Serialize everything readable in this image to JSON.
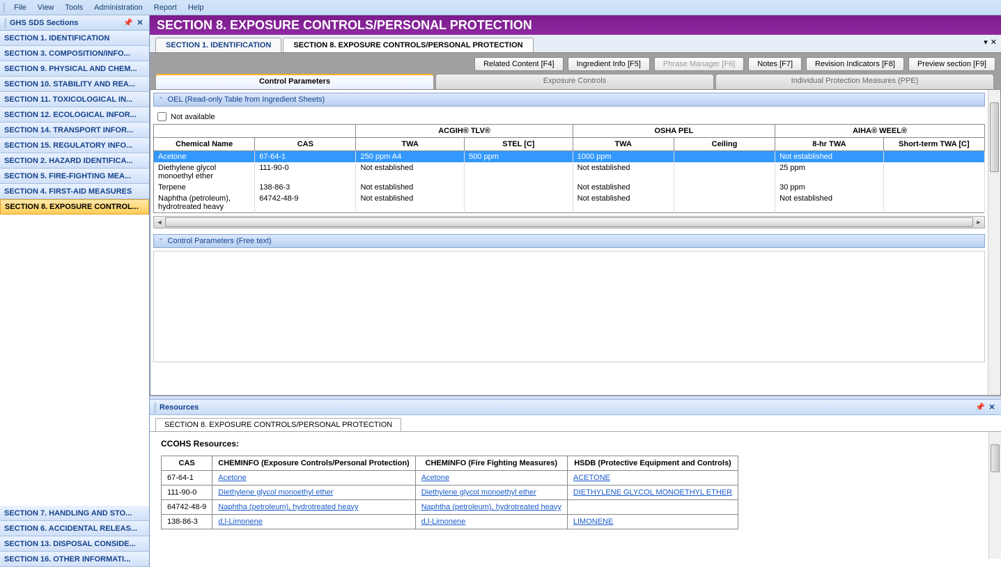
{
  "menu": {
    "items": [
      "File",
      "View",
      "Tools",
      "Administration",
      "Report",
      "Help"
    ]
  },
  "sidebar": {
    "title": "GHS SDS Sections",
    "top_items": [
      "SECTION 1. IDENTIFICATION",
      "SECTION  3. COMPOSITION/INFO...",
      "SECTION  9. PHYSICAL AND CHEM...",
      "SECTION 10. STABILITY AND REA...",
      "SECTION 11. TOXICOLOGICAL IN...",
      "SECTION 12. ECOLOGICAL INFOR...",
      "SECTION 14. TRANSPORT INFOR...",
      "SECTION 15. REGULATORY INFO...",
      "SECTION 2. HAZARD IDENTIFICA...",
      "SECTION 5. FIRE-FIGHTING MEA...",
      "SECTION 4. FIRST-AID MEASURES",
      "SECTION 8. EXPOSURE CONTROL..."
    ],
    "active_index": 11,
    "bottom_items": [
      "SECTION 7. HANDLING AND STO...",
      "SECTION 6. ACCIDENTAL RELEAS...",
      "SECTION 13. DISPOSAL CONSIDE...",
      "SECTION 16. OTHER INFORMATI..."
    ]
  },
  "main": {
    "title": "SECTION 8. EXPOSURE CONTROLS/PERSONAL PROTECTION",
    "doc_tabs": [
      {
        "label": "SECTION 1. IDENTIFICATION",
        "active": false
      },
      {
        "label": "SECTION 8. EXPOSURE CONTROLS/PERSONAL PROTECTION",
        "active": true
      }
    ],
    "toolbar": {
      "related": "Related Content [F4]",
      "ingredient": "Ingredient Info [F5]",
      "phrase": "Phrase Manager [F6]",
      "notes": "Notes [F7]",
      "revision": "Revision Indicators [F8]",
      "preview": "Preview section [F9]"
    },
    "inner_tabs": [
      {
        "label": "Control Parameters",
        "active": true
      },
      {
        "label": "Exposure Controls",
        "active": false
      },
      {
        "label": "Individual Protection Measures (PPE)",
        "active": false
      }
    ],
    "oel": {
      "header": "OEL (Read-only Table from Ingredient Sheets)",
      "not_available": "Not available",
      "group_headers": {
        "acgih": "ACGIH® TLV®",
        "osha": "OSHA PEL",
        "aiha": "AIHA® WEEL®"
      },
      "columns": [
        "Chemical Name",
        "CAS",
        "TWA",
        "STEL [C]",
        "TWA",
        "Ceiling",
        "8-hr TWA",
        "Short-term TWA [C]"
      ],
      "rows": [
        {
          "name": "Acetone",
          "cas": "67-64-1",
          "twa1": "250 ppm A4",
          "stel": "500 ppm",
          "twa2": "1000 ppm",
          "ceil": "",
          "twa8": "Not established",
          "stwa": "",
          "sel": true
        },
        {
          "name": "Diethylene glycol monoethyl ether",
          "cas": "111-90-0",
          "twa1": "Not established",
          "stel": "",
          "twa2": "Not established",
          "ceil": "",
          "twa8": "25 ppm",
          "stwa": ""
        },
        {
          "name": "Terpene",
          "cas": "138-86-3",
          "twa1": "Not established",
          "stel": "",
          "twa2": "Not established",
          "ceil": "",
          "twa8": "30 ppm",
          "stwa": ""
        },
        {
          "name": "Naphtha (petroleum), hydrotreated heavy",
          "cas": "64742-48-9",
          "twa1": "Not established",
          "stel": "",
          "twa2": "Not established",
          "ceil": "",
          "twa8": "Not established",
          "stwa": ""
        }
      ]
    },
    "freetext_header": "Control Parameters (Free text)"
  },
  "resources": {
    "title": "Resources",
    "tab": "SECTION 8. EXPOSURE CONTROLS/PERSONAL PROTECTION",
    "heading": "CCOHS Resources:",
    "columns": [
      "CAS",
      "CHEMINFO (Exposure Controls/Personal Protection)",
      "CHEMINFO (Fire Fighting Measures)",
      "HSDB (Protective Equipment and Controls)"
    ],
    "rows": [
      {
        "cas": "67-64-1",
        "c1": "Acetone",
        "c2": "Acetone",
        "c3": "ACETONE"
      },
      {
        "cas": "111-90-0",
        "c1": "Diethylene glycol monoethyl ether",
        "c2": "Diethylene glycol monoethyl ether",
        "c3": "DIETHYLENE GLYCOL MONOETHYL ETHER"
      },
      {
        "cas": "64742-48-9",
        "c1": "Naphtha (petroleum), hydrotreated heavy",
        "c2": "Naphtha (petroleum), hydrotreated heavy",
        "c3": ""
      },
      {
        "cas": "138-86-3",
        "c1": "d,l-Limonene",
        "c2": "d,l-Limonene",
        "c3": "LIMONENE"
      }
    ]
  }
}
